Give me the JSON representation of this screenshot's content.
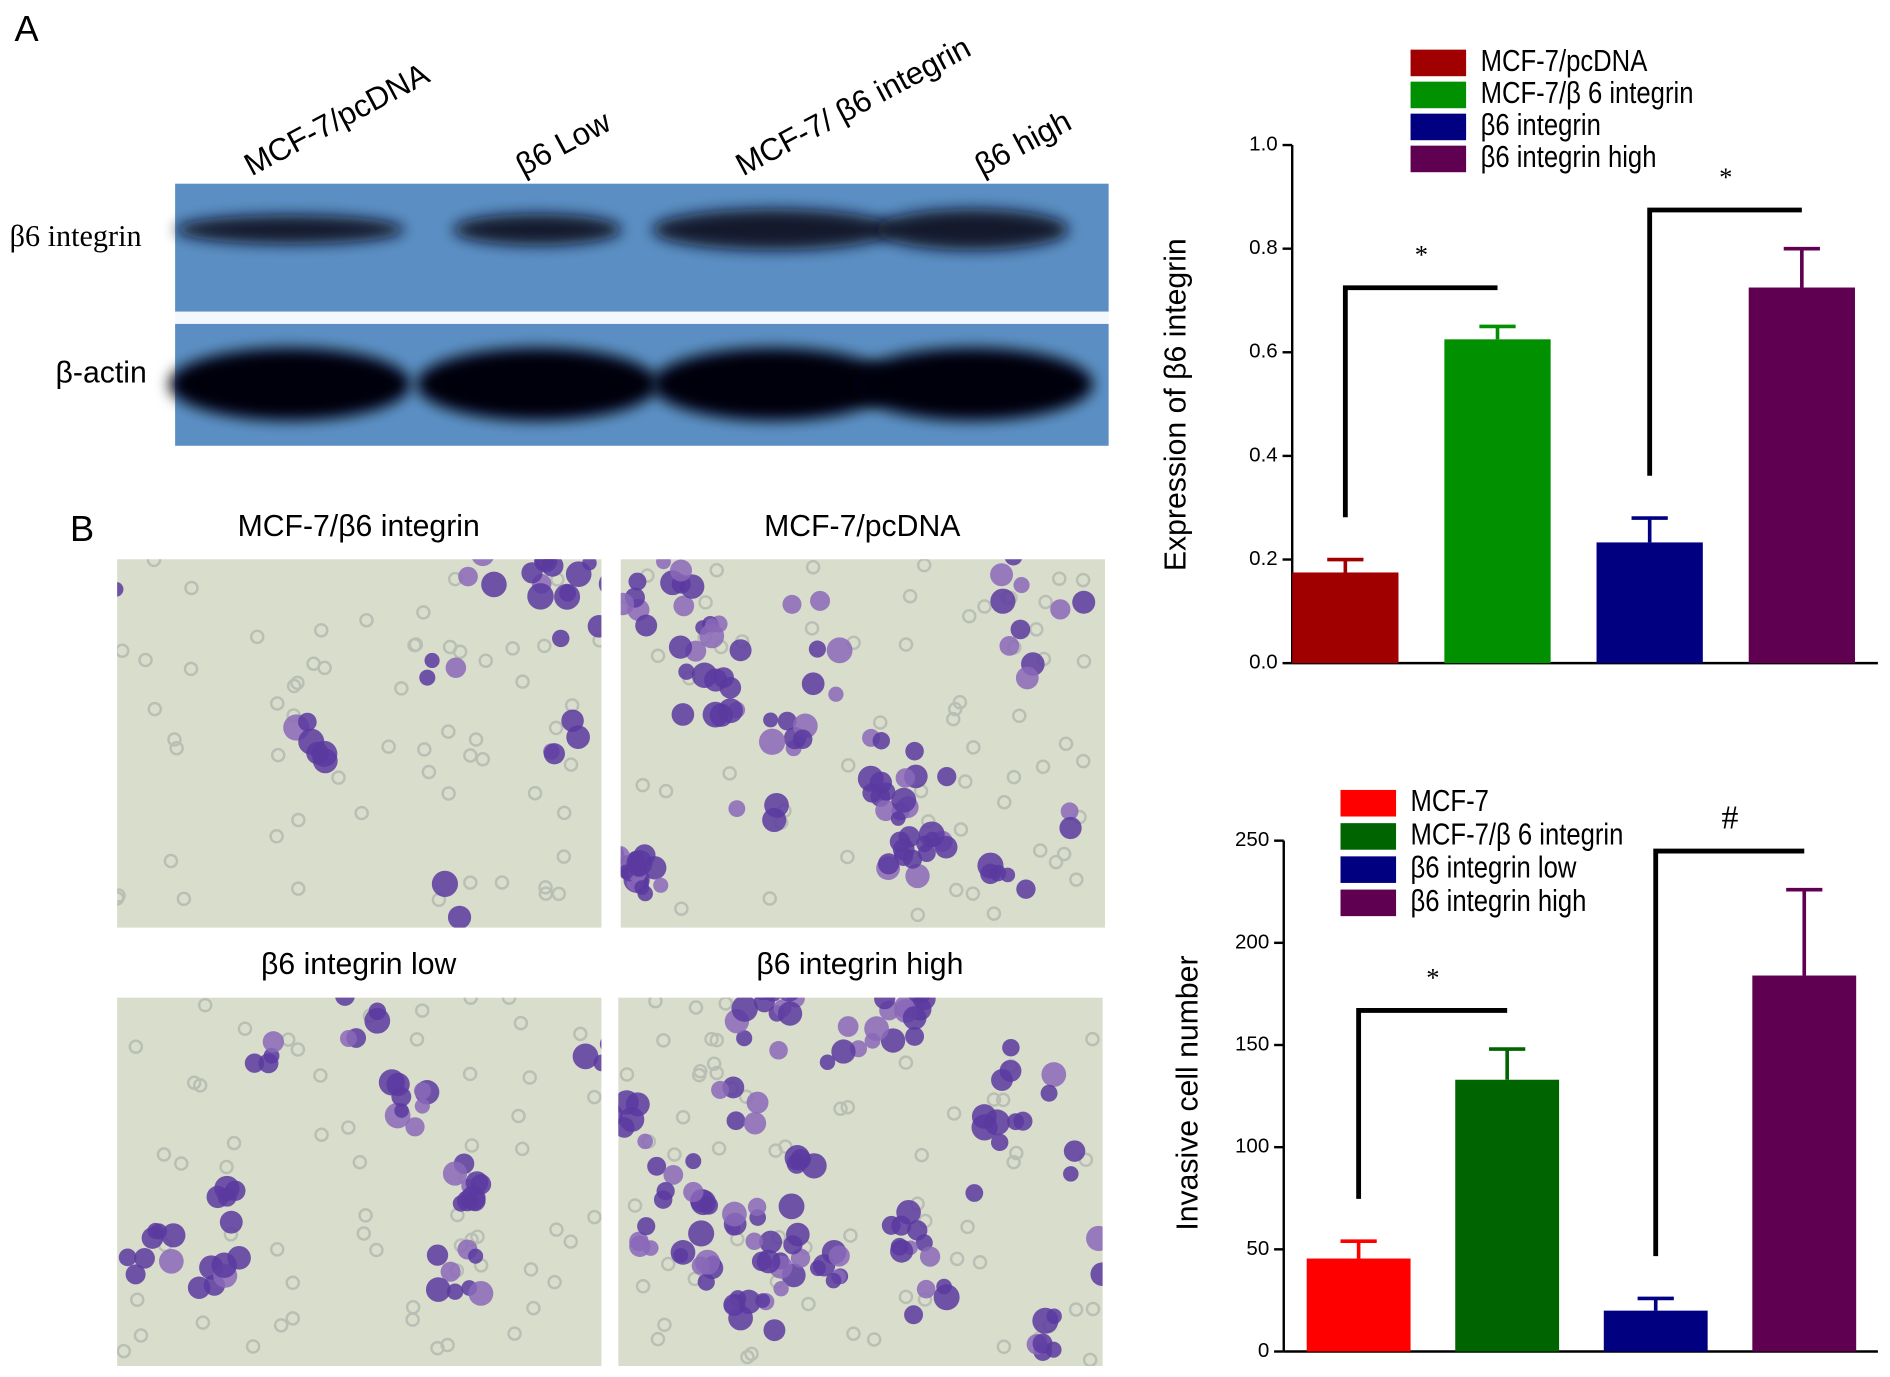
{
  "panels": [
    "A",
    "B"
  ],
  "blot": {
    "lanes": [
      "MCF-7/pcDNA",
      "β6 Low",
      "MCF-7/ β6 integrin",
      "β6 high"
    ],
    "rows": [
      "β6 integrin",
      "β-actin"
    ]
  },
  "micrographs": [
    "MCF-7/β6 integrin",
    "MCF-7/pcDNA",
    "β6 integrin low",
    "β6 integrin high"
  ],
  "chart_data": [
    {
      "type": "bar",
      "y_label": "Expression of β6 integrin",
      "ylim": [
        0,
        1
      ],
      "yticks": [
        {
          "value": 0,
          "label": "0.0"
        },
        0.2,
        0.4,
        0.6,
        0.8,
        {
          "value": 1,
          "label": "1.0"
        }
      ],
      "series": [
        {
          "name": "MCF-7/pcDNA",
          "color": "#a00000",
          "values": [
            0.175
          ],
          "errors": [
            0.025
          ]
        },
        {
          "name": "MCF-7/β 6 integrin",
          "color": "#009000",
          "values": [
            0.625
          ],
          "errors": [
            0.025
          ]
        },
        {
          "name": "β6 integrin",
          "color": "#000080",
          "values": [
            0.233
          ],
          "errors": [
            0.047
          ]
        },
        {
          "name": "β6 integrin high",
          "color": "#600050",
          "values": [
            0.725
          ],
          "errors": [
            0.075
          ]
        }
      ],
      "annotations": [
        {
          "text": "*",
          "from": 0,
          "to": 1
        },
        {
          "text": "*",
          "from": 2,
          "to": 3
        }
      ]
    },
    {
      "type": "bar",
      "y_label": "Invasive cell number",
      "ylim": [
        0,
        250
      ],
      "yticks": [
        0,
        50,
        100,
        150,
        200,
        250
      ],
      "series": [
        {
          "name": "MCF-7",
          "color": "#ff0000",
          "values": [
            45.5
          ],
          "errors": [
            8.5
          ]
        },
        {
          "name": "MCF-7/β 6 integrin",
          "color": "#006400",
          "values": [
            133
          ],
          "errors": [
            15
          ]
        },
        {
          "name": "β6 integrin  low",
          "color": "#000080",
          "values": [
            20
          ],
          "errors": [
            6
          ]
        },
        {
          "name": "β6 integrin  high",
          "color": "#600050",
          "values": [
            184
          ],
          "errors": [
            42
          ]
        }
      ],
      "annotations": [
        {
          "text": "*",
          "from": 0,
          "to": 1
        },
        {
          "text": "#",
          "from": 2,
          "to": 3
        }
      ]
    }
  ]
}
